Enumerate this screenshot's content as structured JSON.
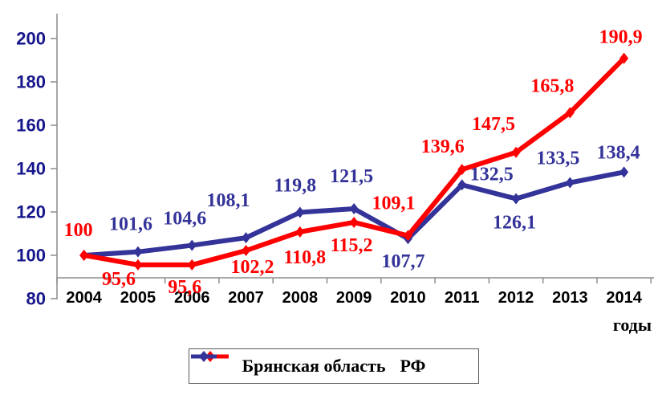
{
  "chart_data": {
    "type": "line",
    "title": "",
    "xlabel": "годы",
    "ylabel": "",
    "categories": [
      "2004",
      "2005",
      "2006",
      "2007",
      "2008",
      "2009",
      "2010",
      "2011",
      "2012",
      "2013",
      "2014"
    ],
    "ylim": [
      80,
      200
    ],
    "yticks": [
      "80",
      "100",
      "120",
      "140",
      "160",
      "180",
      "200"
    ],
    "grid": false,
    "legend_position": "bottom",
    "axis_color": "#8C8C8C",
    "ytick_color": "#16168C",
    "series": [
      {
        "name": "РФ",
        "color": "#333399",
        "values": [
          100,
          101.6,
          104.6,
          108.1,
          119.8,
          121.5,
          107.7,
          132.5,
          126.1,
          133.5,
          138.4
        ],
        "labels": [
          "",
          "101,6",
          "104,6",
          "108,1",
          "119,8",
          "121,5",
          "107,7",
          "132,5",
          "126,1",
          "133,5",
          "138,4"
        ],
        "label_dx": [
          0,
          -9,
          -9,
          -22,
          -6,
          -3,
          -6,
          37,
          -2,
          -15,
          -7
        ],
        "label_dy": [
          0,
          -34,
          -33,
          -46,
          -33,
          -40,
          29,
          -13,
          30,
          -30,
          -24
        ]
      },
      {
        "name": "Брянская область",
        "color": "#FF0000",
        "values": [
          100,
          95.6,
          95.6,
          102.2,
          110.8,
          115.2,
          109.1,
          139.6,
          147.5,
          165.8,
          190.9
        ],
        "labels": [
          "100",
          "95,6",
          "95,6",
          "102,2",
          "110,8",
          "115,2",
          "109,1",
          "139,6",
          "147,5",
          "165,8",
          "190,9"
        ],
        "label_dx": [
          -7,
          -24,
          -9,
          8,
          6,
          -3,
          -18,
          -24,
          -28,
          -22,
          -4
        ],
        "label_dy": [
          -31,
          18,
          28,
          21,
          32,
          29,
          -40,
          -28,
          -35,
          -33,
          -26
        ]
      }
    ]
  },
  "legend": {
    "items": [
      {
        "label": "Брянская область",
        "color": "#FF0000"
      },
      {
        "label": "РФ",
        "color": "#333399"
      }
    ]
  }
}
